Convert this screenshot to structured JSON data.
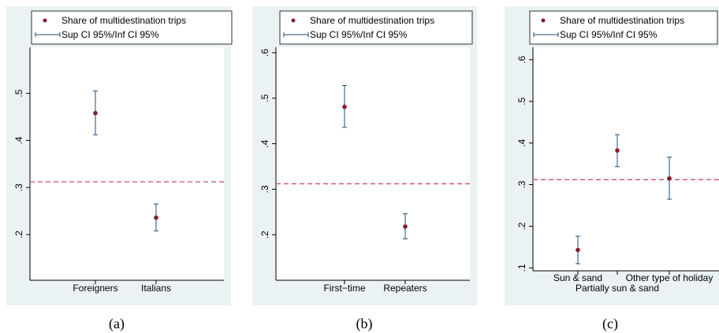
{
  "colors": {
    "point": "#8b1a2b",
    "ci": "#1f4e79",
    "reference_line": "#c8506a",
    "panel_background": "#eaf2f3"
  },
  "legend": {
    "point_label": "Share of multidestination trips",
    "ci_label": "Sup CI 95%/Inf CI 95%"
  },
  "chart_data": [
    {
      "type": "scatter",
      "caption": "(a)",
      "title": "",
      "xlabel": "",
      "ylabel": "",
      "categories": [
        "Foreigners",
        "Italians"
      ],
      "points": [
        {
          "category": "Foreigners",
          "value": 0.458,
          "ci_low": 0.412,
          "ci_high": 0.505
        },
        {
          "category": "Italians",
          "value": 0.236,
          "ci_low": 0.208,
          "ci_high": 0.265
        }
      ],
      "reference_line": 0.312,
      "yticks": [
        0.2,
        0.3,
        0.4,
        0.5
      ],
      "ytick_labels": [
        ".2",
        ".3",
        ".4",
        ".5"
      ],
      "ylim": [
        0.103,
        0.598
      ],
      "grid": false,
      "legend_position": "top"
    },
    {
      "type": "scatter",
      "caption": "(b)",
      "title": "",
      "xlabel": "",
      "ylabel": "",
      "categories": [
        "First−time",
        "Repeaters"
      ],
      "points": [
        {
          "category": "First−time",
          "value": 0.481,
          "ci_low": 0.436,
          "ci_high": 0.528
        },
        {
          "category": "Repeaters",
          "value": 0.218,
          "ci_low": 0.191,
          "ci_high": 0.246
        }
      ],
      "reference_line": 0.312,
      "yticks": [
        0.2,
        0.3,
        0.4,
        0.5,
        0.6
      ],
      "ytick_labels": [
        ".2",
        ".3",
        ".4",
        ".5",
        ".6"
      ],
      "ylim": [
        0.1,
        0.612
      ],
      "grid": false,
      "legend_position": "top"
    },
    {
      "type": "scatter",
      "caption": "(c)",
      "title": "",
      "xlabel": "",
      "ylabel": "",
      "categories": [
        "Sun & sand",
        "Partially sun & sand",
        "Other type of holiday"
      ],
      "points": [
        {
          "category": "Sun & sand",
          "value": 0.143,
          "ci_low": 0.11,
          "ci_high": 0.176
        },
        {
          "category": "Partially sun & sand",
          "value": 0.382,
          "ci_low": 0.343,
          "ci_high": 0.42
        },
        {
          "category": "Other type of holiday",
          "value": 0.315,
          "ci_low": 0.265,
          "ci_high": 0.366
        }
      ],
      "reference_line": 0.312,
      "yticks": [
        0.1,
        0.2,
        0.3,
        0.4,
        0.5,
        0.6
      ],
      "ytick_labels": [
        ".1",
        ".2",
        ".3",
        ".4",
        ".5",
        ".6"
      ],
      "ylim": [
        0.093,
        0.63
      ],
      "grid": false,
      "legend_position": "top"
    }
  ]
}
